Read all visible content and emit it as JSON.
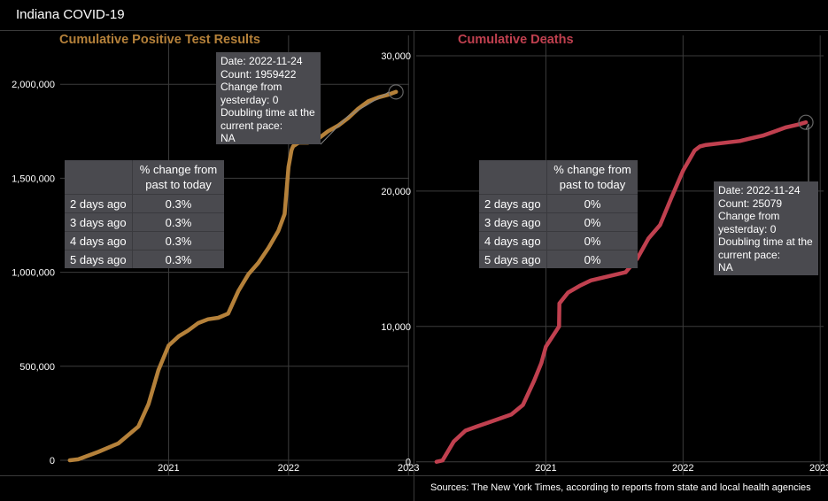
{
  "app": {
    "title": "Indiana COVID-19"
  },
  "colors": {
    "cases": "#b5813a",
    "deaths": "#c0404f",
    "background": "#000000",
    "panel_box": "#4a4a4f"
  },
  "left_panel": {
    "title": "Cumulative Positive Test Results",
    "tooltip": {
      "date": "Date: 2022-11-24",
      "count": "Count: 1959422",
      "change_1": "Change from",
      "change_2": "yesterday: 0",
      "doubling_1": "Doubling time at the",
      "doubling_2": "current pace:",
      "doubling_3": "NA"
    },
    "table": {
      "header_1": "% change from",
      "header_2": "past to today",
      "rows": [
        {
          "label": "2 days ago",
          "value": "0.3%"
        },
        {
          "label": "3 days ago",
          "value": "0.3%"
        },
        {
          "label": "4 days ago",
          "value": "0.3%"
        },
        {
          "label": "5 days ago",
          "value": "0.3%"
        }
      ]
    }
  },
  "right_panel": {
    "title": "Cumulative Deaths",
    "tooltip": {
      "date": "Date: 2022-11-24",
      "count": "Count: 25079",
      "change_1": "Change from",
      "change_2": "yesterday: 0",
      "doubling_1": "Doubling time at the",
      "doubling_2": "current pace:",
      "doubling_3": "NA"
    },
    "table": {
      "header_1": "% change from",
      "header_2": "past to today",
      "rows": [
        {
          "label": "2 days ago",
          "value": "0%"
        },
        {
          "label": "3 days ago",
          "value": "0%"
        },
        {
          "label": "4 days ago",
          "value": "0%"
        },
        {
          "label": "5 days ago",
          "value": "0%"
        }
      ]
    }
  },
  "footer": {
    "source": "Sources: The New York Times, according to reports from state and local health agencies"
  },
  "chart_data": [
    {
      "type": "line",
      "title": "Cumulative Positive Test Results",
      "xlabel": "",
      "ylabel": "",
      "x_ticks": [
        "2021",
        "2022",
        "2023"
      ],
      "y_ticks": [
        "0",
        "500,000",
        "1,000,000",
        "1,500,000",
        "2,000,000"
      ],
      "y_tick_values": [
        0,
        500000,
        1000000,
        1500000,
        2000000
      ],
      "ylim": [
        -80000,
        2260000
      ],
      "xlim": [
        "2020-02-06",
        "2023-01-03"
      ],
      "grid": true,
      "series": [
        {
          "x": [
            "2020-03-06",
            "2020-04-01",
            "2020-06-01",
            "2020-08-01",
            "2020-10-01",
            "2020-11-01",
            "2020-12-01",
            "2021-01-01",
            "2021-02-01",
            "2021-03-01",
            "2021-04-01",
            "2021-05-01",
            "2021-06-01",
            "2021-07-01",
            "2021-08-01",
            "2021-09-01",
            "2021-10-01",
            "2021-11-01",
            "2021-12-01",
            "2021-12-20",
            "2022-01-01",
            "2022-01-10",
            "2022-01-15",
            "2022-02-01",
            "2022-03-01",
            "2022-04-01",
            "2022-05-01",
            "2022-06-01",
            "2022-07-01",
            "2022-08-01",
            "2022-09-01",
            "2022-10-01",
            "2022-11-01",
            "2022-11-24"
          ],
          "values": [
            0,
            5000,
            45000,
            90000,
            180000,
            300000,
            480000,
            610000,
            660000,
            690000,
            730000,
            750000,
            758000,
            780000,
            900000,
            990000,
            1050000,
            1130000,
            1220000,
            1310000,
            1560000,
            1650000,
            1670000,
            1690000,
            1690000,
            1710000,
            1750000,
            1780000,
            1820000,
            1870000,
            1910000,
            1930000,
            1945000,
            1959422
          ]
        }
      ]
    },
    {
      "type": "line",
      "title": "Cumulative Deaths",
      "xlabel": "",
      "ylabel": "",
      "x_ticks": [
        "2021",
        "2022",
        "2023"
      ],
      "y_ticks": [
        "0",
        "10,000",
        "20,000",
        "30,000"
      ],
      "y_tick_values": [
        0,
        10000,
        20000,
        30000
      ],
      "ylim": [
        -1000,
        31500
      ],
      "xlim": [
        "2020-01-22",
        "2023-01-10"
      ],
      "grid": true,
      "series": [
        {
          "x": [
            "2020-03-16",
            "2020-04-01",
            "2020-05-01",
            "2020-06-01",
            "2020-07-01",
            "2020-08-01",
            "2020-09-01",
            "2020-10-01",
            "2020-11-01",
            "2020-12-01",
            "2020-12-20",
            "2021-01-01",
            "2021-02-05",
            "2021-02-06",
            "2021-03-01",
            "2021-04-01",
            "2021-05-01",
            "2021-06-01",
            "2021-07-01",
            "2021-08-01",
            "2021-09-01",
            "2021-10-01",
            "2021-11-01",
            "2021-12-01",
            "2022-01-01",
            "2022-02-01",
            "2022-02-15",
            "2022-03-01",
            "2022-04-01",
            "2022-05-01",
            "2022-06-01",
            "2022-07-01",
            "2022-08-01",
            "2022-09-01",
            "2022-10-01",
            "2022-11-01",
            "2022-11-24"
          ],
          "values": [
            0,
            100,
            1500,
            2300,
            2600,
            2900,
            3200,
            3500,
            4200,
            6000,
            7300,
            8500,
            10000,
            11700,
            12500,
            13000,
            13400,
            13600,
            13800,
            14000,
            15000,
            16500,
            17500,
            19500,
            21500,
            23000,
            23300,
            23400,
            23500,
            23600,
            23700,
            23900,
            24100,
            24400,
            24700,
            24900,
            25079
          ]
        }
      ]
    }
  ]
}
